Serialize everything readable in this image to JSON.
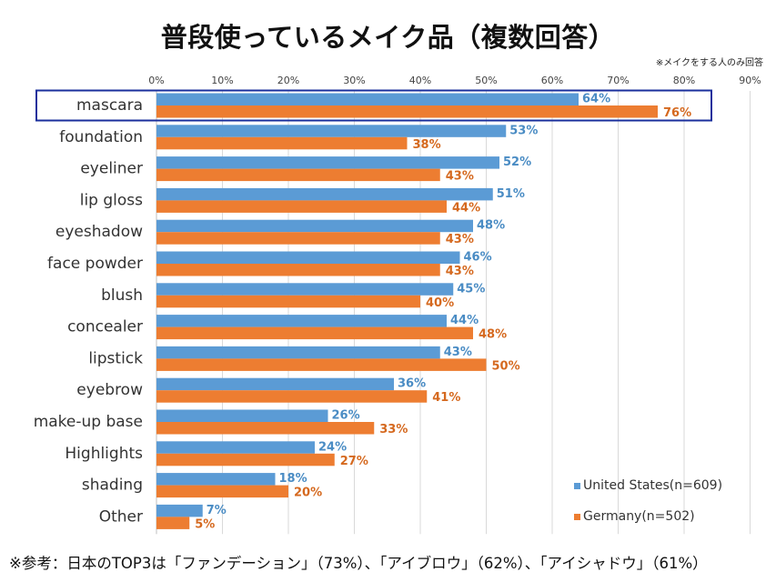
{
  "title": "普段使っているメイク品（複数回答）",
  "note": "※メイクをする人のみ回答",
  "footnote": "※参考：日本のTOP3は「ファンデーション」（73%）、「アイブロウ」（62%）、「アイシャドウ」（61%）",
  "colors": {
    "united_states": "#5b9bd5",
    "germany": "#ed7d31",
    "highlight_box": "#1a2f9c",
    "grid": "#d9d9d9"
  },
  "chart_data": {
    "type": "bar",
    "orientation": "horizontal",
    "categories": [
      "mascara",
      "foundation",
      "eyeliner",
      "lip gloss",
      "eyeshadow",
      "face powder",
      "blush",
      "concealer",
      "lipstick",
      "eyebrow",
      "make-up base",
      "Highlights",
      "shading",
      "Other"
    ],
    "series": [
      {
        "name": "United States(n=609)",
        "values": [
          64,
          53,
          52,
          51,
          48,
          46,
          45,
          44,
          43,
          36,
          26,
          24,
          18,
          7
        ]
      },
      {
        "name": "Germany(n=502)",
        "values": [
          76,
          38,
          43,
          44,
          43,
          43,
          40,
          48,
          50,
          41,
          33,
          27,
          20,
          5
        ]
      }
    ],
    "xlim": [
      0,
      90
    ],
    "xticks": [
      "0%",
      "10%",
      "20%",
      "30%",
      "40%",
      "50%",
      "60%",
      "70%",
      "80%",
      "90%"
    ],
    "value_suffix": "%",
    "grid": true,
    "legend_position": "bottom-right",
    "highlighted_category": "mascara"
  }
}
